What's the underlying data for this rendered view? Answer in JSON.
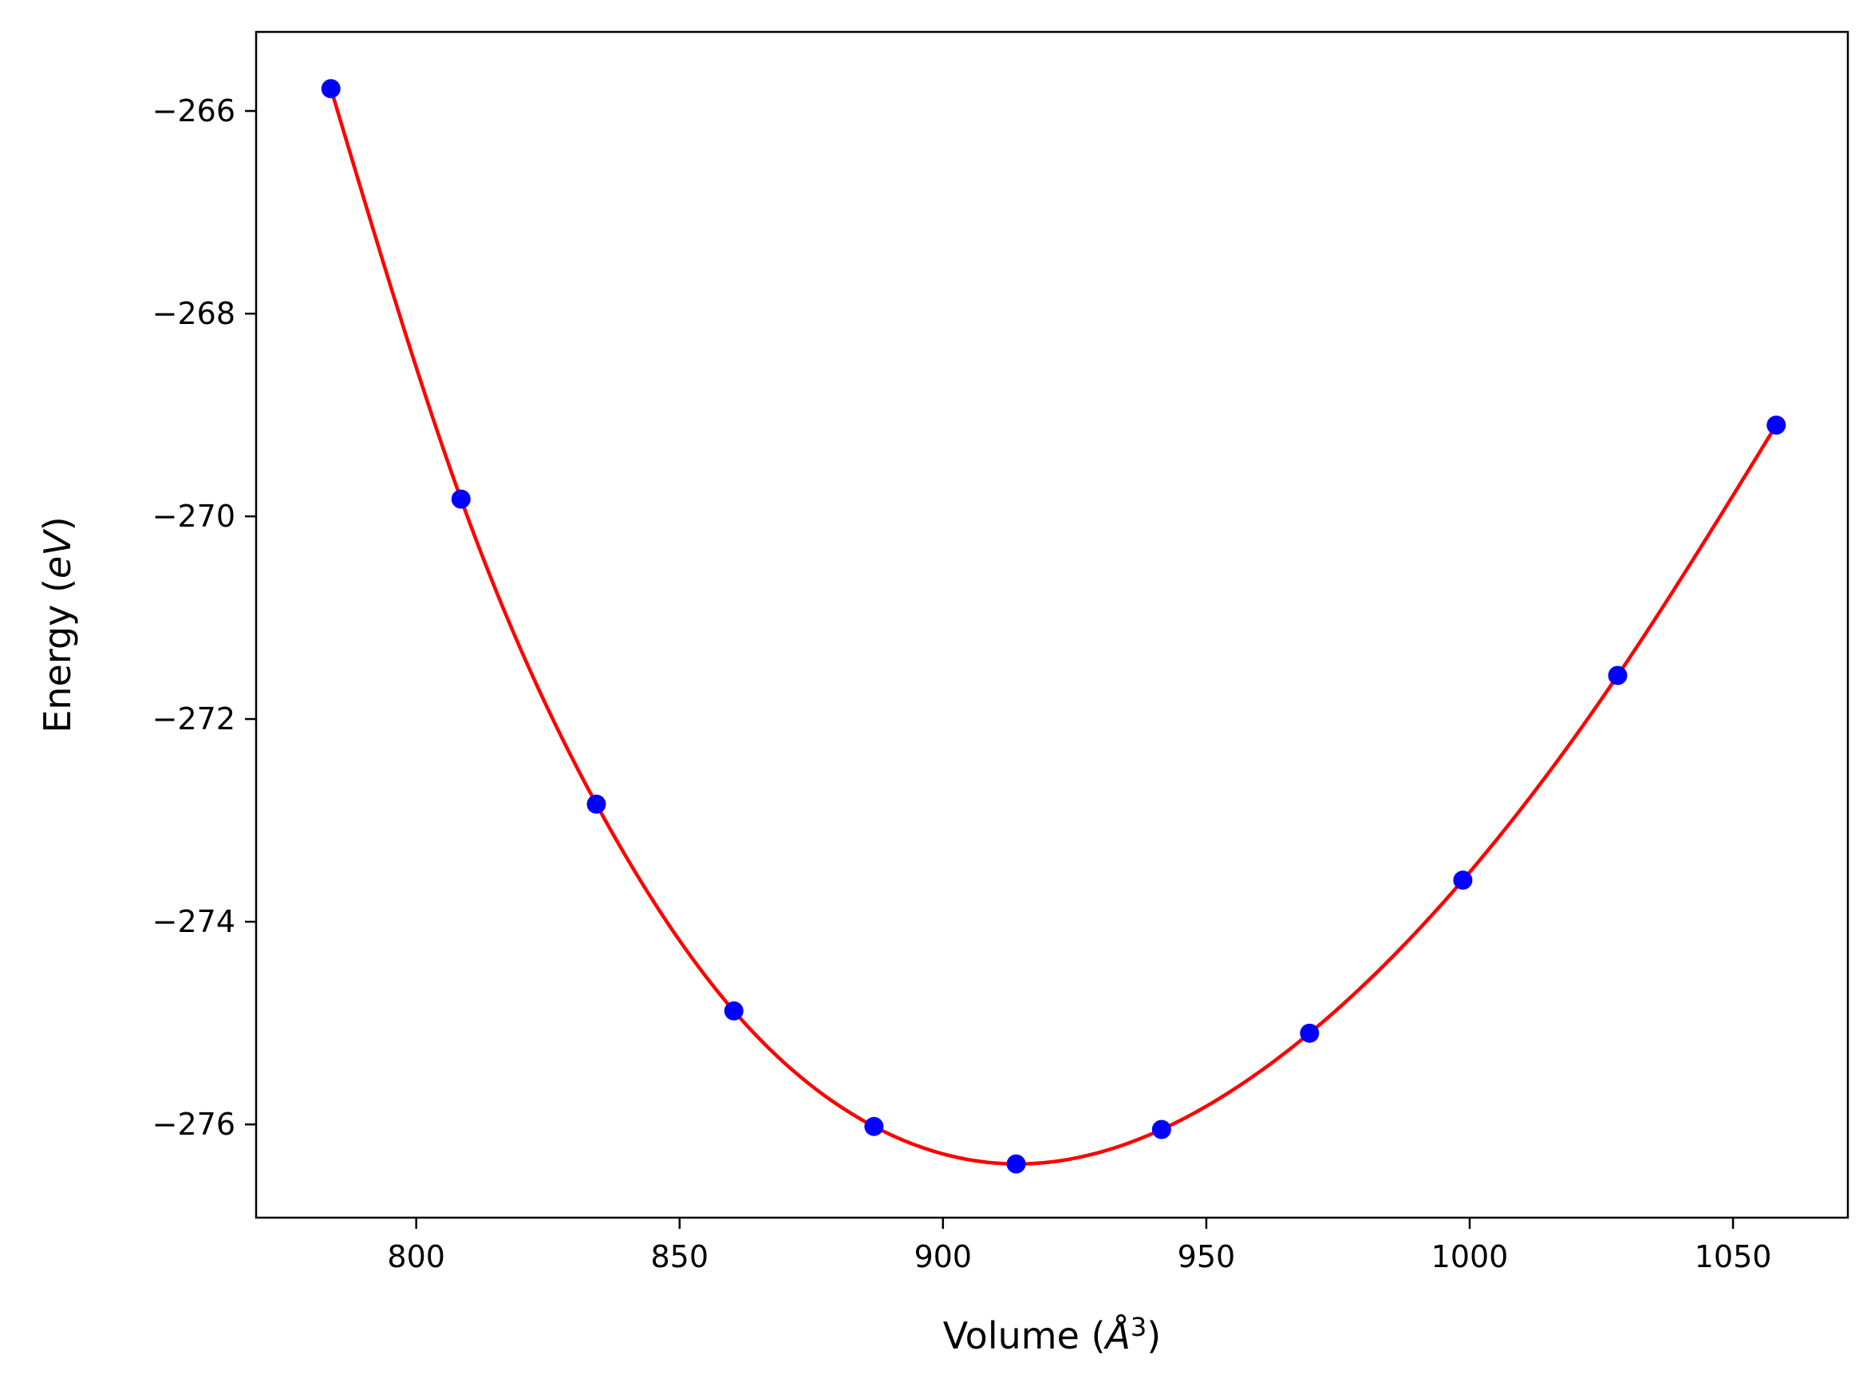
{
  "chart_data": {
    "type": "scatter",
    "xlabel": {
      "prefix": "Volume (",
      "italic": "Å",
      "superscript": "3",
      "suffix": ")"
    },
    "ylabel": {
      "prefix": "Energy (",
      "italic": "eV",
      "suffix": ")"
    },
    "xlim": [
      769.6,
      1071.8
    ],
    "ylim": [
      -276.92,
      -265.22
    ],
    "xticks": [
      800,
      850,
      900,
      950,
      1000,
      1050
    ],
    "yticks": [
      -266,
      -268,
      -270,
      -272,
      -274,
      -276
    ],
    "xtick_labels": [
      "800",
      "850",
      "900",
      "950",
      "1000",
      "1050"
    ],
    "ytick_labels": [
      "−266",
      "−268",
      "−270",
      "−272",
      "−274",
      "−276"
    ],
    "grid": false,
    "legend": "none",
    "series": [
      {
        "kind": "points",
        "color": "#0000ff",
        "x": [
          783.8,
          808.5,
          834.2,
          860.3,
          886.9,
          913.9,
          941.5,
          969.6,
          998.7,
          1028.1,
          1058.2
        ],
        "y": [
          -265.78,
          -269.83,
          -272.84,
          -274.88,
          -276.02,
          -276.39,
          -276.05,
          -275.1,
          -273.59,
          -271.57,
          -269.1
        ]
      },
      {
        "kind": "fit-curve",
        "color": "#ff0000",
        "x": [
          783.8,
          808.5,
          834.2,
          860.3,
          886.9,
          913.9,
          941.5,
          969.6,
          998.7,
          1028.1,
          1058.2
        ],
        "y": [
          -265.78,
          -269.83,
          -272.84,
          -274.88,
          -276.02,
          -276.39,
          -276.05,
          -275.1,
          -273.59,
          -271.57,
          -269.1
        ]
      }
    ]
  }
}
